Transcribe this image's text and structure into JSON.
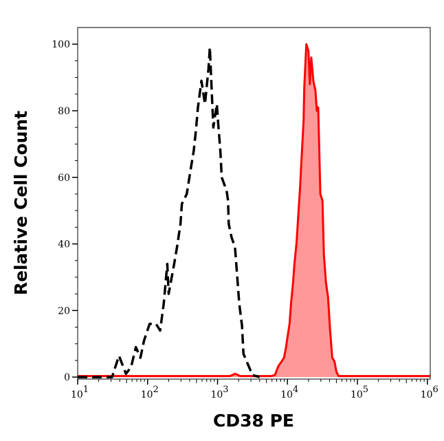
{
  "chart_data": {
    "type": "area",
    "title": "",
    "xlabel": "CD38 PE",
    "ylabel": "Relative Cell Count",
    "x_scale": "log",
    "xlim": [
      10,
      1100000
    ],
    "ylim": [
      -0.6,
      105
    ],
    "x_ticks": [
      {
        "base": "10",
        "exp": "1",
        "value": 10
      },
      {
        "base": "10",
        "exp": "2",
        "value": 100
      },
      {
        "base": "10",
        "exp": "3",
        "value": 1000
      },
      {
        "base": "10",
        "exp": "4",
        "value": 10000
      },
      {
        "base": "10",
        "exp": "5",
        "value": 100000
      },
      {
        "base": "10",
        "exp": "6",
        "value": 1000000
      }
    ],
    "y_ticks": [
      "0",
      "20",
      "40",
      "60",
      "80",
      "100"
    ],
    "grid": false,
    "legend": "none",
    "series": [
      {
        "style": "dashed-line",
        "color": "#000000",
        "x": [
          10,
          20,
          31,
          39,
          49,
          58,
          68,
          79,
          89,
          107,
          132,
          151,
          170,
          191,
          200,
          240,
          263,
          295,
          309,
          363,
          417,
          457,
          490,
          525,
          589,
          661,
          741,
          776,
          813,
          871,
          977,
          1023,
          1096,
          1148,
          1349,
          1413,
          1445,
          1585,
          1778,
          1905,
          2042,
          2239,
          2344,
          2692,
          3162,
          3981
        ],
        "y": [
          0,
          0,
          0,
          6.4,
          1,
          3,
          9,
          5.8,
          11,
          16,
          16,
          14,
          22,
          34,
          25,
          34,
          39,
          46,
          52,
          55,
          63,
          68,
          74,
          81,
          89,
          82,
          92.5,
          99,
          89,
          75,
          82,
          76,
          68,
          60,
          56,
          53,
          46,
          42,
          39,
          30.6,
          22,
          15.5,
          7,
          4,
          0.6,
          0
        ]
      },
      {
        "style": "filled-line",
        "color": "#ff0000",
        "fill": "#ff9999",
        "x": [
          10,
          1500,
          1800,
          2100,
          5000,
          5888,
          6607,
          7413,
          8318,
          8913,
          9550,
          10000,
          10715,
          11220,
          12023,
          12589,
          13490,
          14125,
          15136,
          15849,
          16982,
          17378,
          18621,
          19953,
          20893,
          21878,
          23442,
          25119,
          26303,
          27542,
          29512,
          31623,
          33113,
          35481,
          38019,
          40738,
          43652,
          46774,
          50119,
          53703,
          100000,
          1100000
        ],
        "y": [
          0.3,
          0.3,
          1,
          0.3,
          0.3,
          0.3,
          0.6,
          3.3,
          4.8,
          5.8,
          9,
          12,
          16,
          22,
          28.5,
          34,
          40.5,
          47,
          57,
          65,
          77,
          87,
          100,
          98,
          88,
          96,
          89,
          86,
          80,
          81,
          55,
          53,
          37,
          28.5,
          24,
          14,
          5.8,
          4.8,
          1.6,
          0.3,
          0.3,
          0.3
        ]
      }
    ]
  }
}
